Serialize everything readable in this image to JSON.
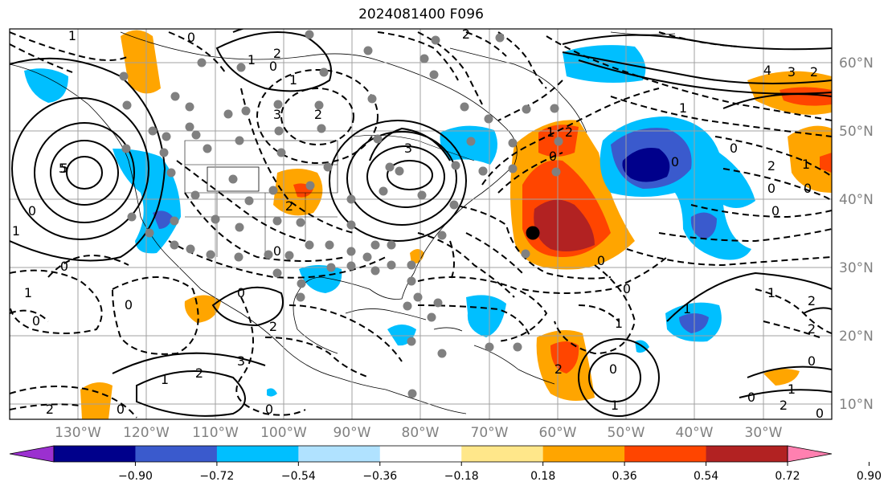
{
  "title": "2024081400 F096",
  "map": {
    "projection": "PlateCarree",
    "lon_range": [
      -140,
      20
    ],
    "lat_range": [
      7,
      65
    ],
    "lon_ticks": [
      "130°W",
      "120°W",
      "110°W",
      "100°W",
      "90°W",
      "80°W",
      "70°W",
      "60°W",
      "50°W",
      "40°W",
      "30°W"
    ],
    "lat_ticks": [
      "60°N",
      "50°N",
      "40°N",
      "30°N",
      "20°N",
      "10°N"
    ],
    "axis_label_color": "#808080",
    "gridlines": true
  },
  "colorbar": {
    "tick_labels": [
      "−0.90",
      "−0.72",
      "−0.54",
      "−0.36",
      "−0.18",
      "0.18",
      "0.36",
      "0.54",
      "0.72",
      "0.90"
    ],
    "colors": [
      "#9b30d0",
      "#00008b",
      "#3a5acd",
      "#00bfff",
      "#b0e2ff",
      "#ffffff",
      "#ffe78a",
      "#ffa500",
      "#ff4500",
      "#b22222",
      "#ff80b0"
    ],
    "extend": "both"
  },
  "contour_labels": [
    "1",
    "2",
    "0",
    "5",
    "4",
    "3",
    "2",
    "1",
    "2",
    "0",
    "1",
    "3",
    "5",
    "0",
    "2",
    "3",
    "2",
    "0",
    "1",
    "0",
    "1",
    "0",
    "0",
    "1",
    "2",
    "0",
    "0",
    "2",
    "3",
    "0",
    "2",
    "0",
    "1",
    "0",
    "1",
    "2",
    "0",
    "0",
    "1",
    "2",
    "2",
    "0",
    "0",
    "1",
    "0",
    "1",
    "0",
    "2",
    "1",
    "0",
    "2",
    "0",
    "0",
    "1",
    "2",
    "1",
    "0"
  ]
}
